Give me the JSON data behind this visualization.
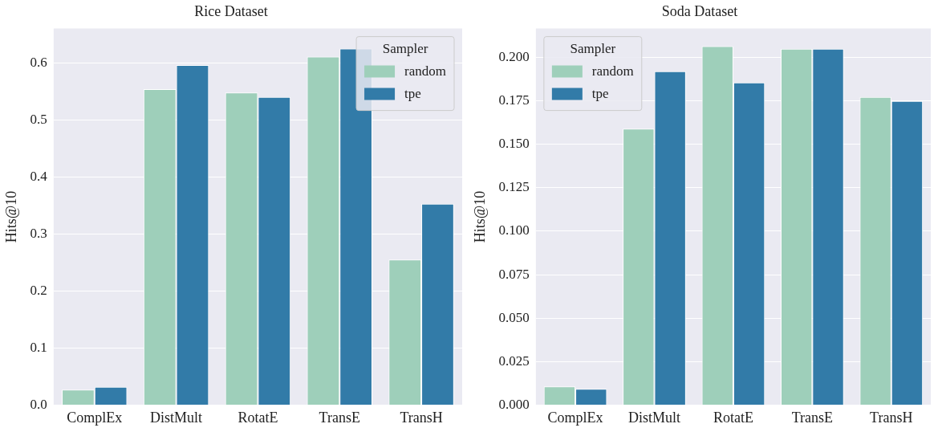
{
  "chart_data": [
    {
      "type": "bar",
      "title": "Rice Dataset",
      "ylabel": "Hits@10",
      "legend_title": "Sampler",
      "legend": "top right",
      "grid": "y",
      "categories": [
        "ComplEx",
        "DistMult",
        "RotatE",
        "TransE",
        "TransH"
      ],
      "ylim": [
        0,
        0.66
      ],
      "yticks": [
        {
          "value": 0,
          "label": "0.0"
        },
        0.1,
        0.2,
        0.3,
        0.4,
        0.5,
        0.6
      ],
      "series": [
        {
          "name": "random",
          "color": "#9ecfba",
          "values": [
            0.027,
            0.554,
            0.548,
            0.611,
            0.255
          ]
        },
        {
          "name": "tpe",
          "color": "#327ba8",
          "values": [
            0.032,
            0.596,
            0.54,
            0.625,
            0.353
          ]
        }
      ]
    },
    {
      "type": "bar",
      "title": "Soda Dataset",
      "ylabel": "Hits@10",
      "legend_title": "Sampler",
      "legend": "top left",
      "grid": "y",
      "categories": [
        "ComplEx",
        "DistMult",
        "RotatE",
        "TransE",
        "TransH"
      ],
      "ylim": [
        0,
        0.2166
      ],
      "yticks": [
        {
          "value": 0,
          "label": "0.000"
        },
        {
          "value": 0.025,
          "label": "0.025"
        },
        {
          "value": 0.05,
          "label": "0.050"
        },
        {
          "value": 0.075,
          "label": "0.075"
        },
        {
          "value": 0.1,
          "label": "0.100"
        },
        {
          "value": 0.125,
          "label": "0.125"
        },
        {
          "value": 0.15,
          "label": "0.150"
        },
        {
          "value": 0.175,
          "label": "0.175"
        },
        {
          "value": 0.2,
          "label": "0.200"
        }
      ],
      "series": [
        {
          "name": "random",
          "color": "#9ecfba",
          "values": [
            0.0107,
            0.159,
            0.2065,
            0.205,
            0.1773
          ]
        },
        {
          "name": "tpe",
          "color": "#327ba8",
          "values": [
            0.0093,
            0.192,
            0.1856,
            0.205,
            0.175
          ]
        }
      ]
    }
  ]
}
